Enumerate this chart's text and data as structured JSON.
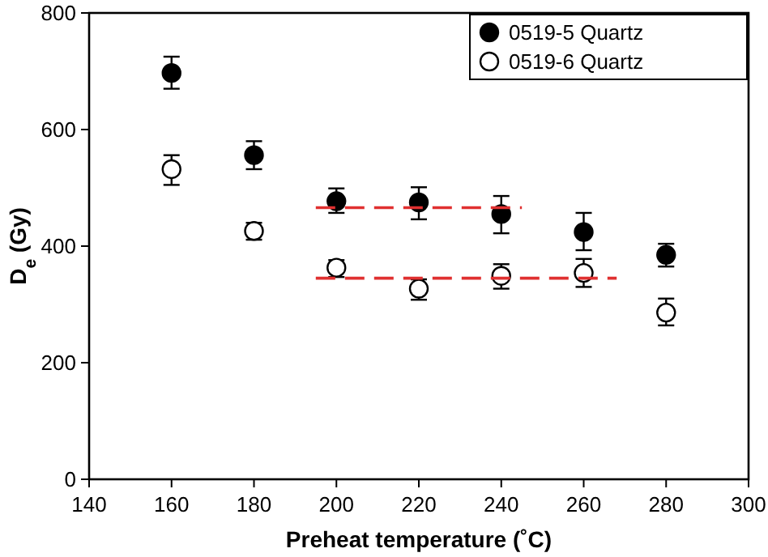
{
  "chart_data": {
    "type": "scatter",
    "xlabel": "Preheat temperature (˚C)",
    "ylabel": "D$_{e}$ (Gy)",
    "x": [
      160,
      180,
      200,
      220,
      240,
      260,
      280
    ],
    "series": [
      {
        "name": "0519-5 Quartz",
        "color": "#000000",
        "values": [
          697,
          556,
          477,
          475,
          455,
          424,
          385
        ],
        "errors": [
          [
            670,
            725
          ],
          [
            532,
            580
          ],
          [
            457,
            499
          ],
          [
            446,
            501
          ],
          [
            422,
            486
          ],
          [
            393,
            457
          ],
          [
            365,
            404
          ]
        ]
      },
      {
        "name": "0519-6 Quartz",
        "color": "#ffffff",
        "values": [
          532,
          426,
          363,
          327,
          349,
          354,
          286
        ],
        "errors": [
          [
            505,
            556
          ],
          [
            411,
            440
          ],
          [
            347,
            376
          ],
          [
            308,
            343
          ],
          [
            327,
            369
          ],
          [
            330,
            378
          ],
          [
            264,
            310
          ]
        ]
      },
      {
        "type": "line",
        "marker": "none",
        "color": "#e03030",
        "line_style": "dashed",
        "x": [
          195,
          245
        ],
        "values": [
          466,
          466
        ]
      },
      {
        "type": "line",
        "marker": "none",
        "color": "#e03030",
        "line_style": "dashed",
        "x": [
          195,
          268
        ],
        "values": [
          345,
          345
        ]
      }
    ],
    "xlim": [
      140,
      300
    ],
    "xticks": [
      140,
      160,
      180,
      200,
      220,
      240,
      260,
      280,
      300
    ],
    "ylim": [
      0,
      800
    ],
    "yticks": [
      0,
      200,
      400,
      600,
      800
    ],
    "marker": "circle",
    "legend": "top right",
    "grid": false
  }
}
